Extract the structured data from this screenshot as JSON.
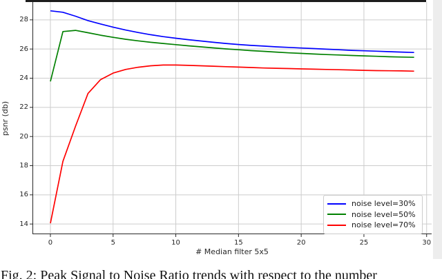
{
  "figure": {
    "caption": "Fig. 2: Peak Signal to Noise Ratio trends with respect to the number"
  },
  "chart_data": {
    "type": "line",
    "title": "",
    "xlabel": "# Median filter 5x5",
    "ylabel": "psnr (db)",
    "grid": true,
    "legend_position": "lower right",
    "xlim": [
      -1.43,
      30.4
    ],
    "ylim": [
      13.3,
      29.22
    ],
    "xticks": [
      0,
      5,
      10,
      15,
      20,
      25,
      30
    ],
    "yticks": [
      14,
      16,
      18,
      20,
      22,
      24,
      26,
      28
    ],
    "x": [
      0,
      1,
      2,
      3,
      4,
      5,
      6,
      7,
      8,
      9,
      10,
      11,
      12,
      13,
      14,
      15,
      16,
      17,
      18,
      19,
      20,
      21,
      22,
      23,
      24,
      25,
      26,
      27,
      28,
      29
    ],
    "series": [
      {
        "name": "noise level=30%",
        "color": "#0000ff",
        "values": [
          28.62,
          28.52,
          28.25,
          27.95,
          27.72,
          27.5,
          27.3,
          27.13,
          26.98,
          26.85,
          26.74,
          26.64,
          26.55,
          26.46,
          26.38,
          26.31,
          26.25,
          26.2,
          26.15,
          26.11,
          26.07,
          26.03,
          25.99,
          25.95,
          25.91,
          25.88,
          25.85,
          25.82,
          25.79,
          25.76
        ]
      },
      {
        "name": "noise level=50%",
        "color": "#008000",
        "values": [
          23.78,
          27.2,
          27.28,
          27.12,
          26.95,
          26.8,
          26.67,
          26.56,
          26.46,
          26.38,
          26.3,
          26.22,
          26.15,
          26.08,
          26.01,
          25.95,
          25.89,
          25.84,
          25.79,
          25.74,
          25.7,
          25.66,
          25.62,
          25.59,
          25.56,
          25.53,
          25.5,
          25.47,
          25.45,
          25.43
        ]
      },
      {
        "name": "noise level=70%",
        "color": "#ff0000",
        "values": [
          14.05,
          18.3,
          20.7,
          22.95,
          23.9,
          24.35,
          24.6,
          24.75,
          24.85,
          24.9,
          24.9,
          24.88,
          24.85,
          24.82,
          24.79,
          24.76,
          24.73,
          24.7,
          24.68,
          24.66,
          24.64,
          24.62,
          24.6,
          24.58,
          24.56,
          24.54,
          24.52,
          24.51,
          24.5,
          24.48
        ]
      }
    ],
    "colors": {
      "grid": "#cccccc",
      "spine": "#262626",
      "tick_text": "#262626"
    }
  }
}
